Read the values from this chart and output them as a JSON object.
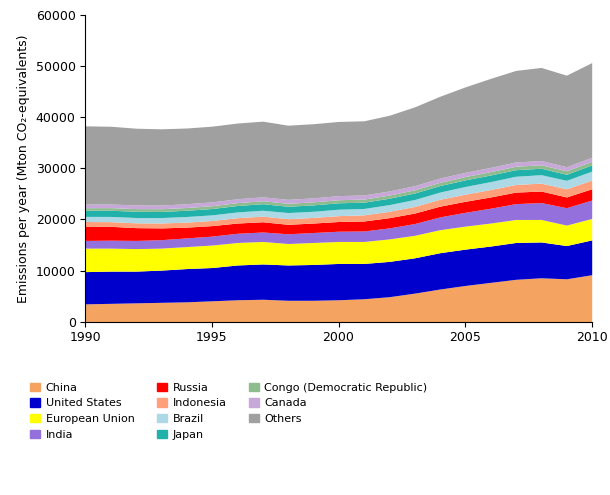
{
  "years": [
    1990,
    1991,
    1992,
    1993,
    1994,
    1995,
    1996,
    1997,
    1998,
    1999,
    2000,
    2001,
    2002,
    2003,
    2004,
    2005,
    2006,
    2007,
    2008,
    2009,
    2010
  ],
  "series": {
    "China": [
      3500,
      3600,
      3700,
      3800,
      3900,
      4100,
      4300,
      4400,
      4200,
      4200,
      4300,
      4500,
      4900,
      5600,
      6400,
      7100,
      7700,
      8300,
      8600,
      8400,
      9200
    ],
    "United States": [
      6300,
      6300,
      6200,
      6300,
      6500,
      6500,
      6800,
      6900,
      6900,
      7000,
      7100,
      6900,
      6900,
      6900,
      7100,
      7100,
      7100,
      7200,
      7000,
      6500,
      6800
    ],
    "European Union": [
      4600,
      4500,
      4400,
      4300,
      4300,
      4400,
      4400,
      4400,
      4200,
      4300,
      4300,
      4300,
      4400,
      4400,
      4500,
      4500,
      4500,
      4500,
      4400,
      4000,
      4200
    ],
    "India": [
      1500,
      1550,
      1600,
      1650,
      1700,
      1750,
      1800,
      1850,
      1900,
      1950,
      2000,
      2050,
      2150,
      2300,
      2500,
      2700,
      2900,
      3100,
      3300,
      3400,
      3600
    ],
    "Russia": [
      2800,
      2700,
      2500,
      2300,
      2100,
      2050,
      2000,
      2000,
      1850,
      1850,
      1900,
      1950,
      2000,
      2050,
      2100,
      2150,
      2200,
      2250,
      2250,
      2100,
      2200
    ],
    "Indonesia": [
      900,
      920,
      940,
      960,
      980,
      1000,
      1050,
      1100,
      1100,
      1100,
      1150,
      1200,
      1250,
      1300,
      1350,
      1400,
      1450,
      1500,
      1550,
      1600,
      1700
    ],
    "Brazil": [
      1000,
      1020,
      1040,
      1060,
      1100,
      1100,
      1120,
      1150,
      1200,
      1200,
      1250,
      1250,
      1300,
      1350,
      1400,
      1500,
      1550,
      1600,
      1650,
      1650,
      1750
    ],
    "Japan": [
      1200,
      1210,
      1220,
      1200,
      1220,
      1240,
      1260,
      1280,
      1230,
      1250,
      1260,
      1230,
      1250,
      1270,
      1280,
      1290,
      1290,
      1280,
      1260,
      1180,
      1220
    ],
    "Congo (Democratic Republic)": [
      500,
      510,
      520,
      530,
      540,
      550,
      560,
      570,
      580,
      590,
      600,
      610,
      620,
      630,
      640,
      650,
      660,
      670,
      680,
      690,
      700
    ],
    "Canada": [
      700,
      710,
      720,
      720,
      740,
      750,
      760,
      770,
      770,
      780,
      800,
      800,
      800,
      810,
      820,
      830,
      830,
      840,
      830,
      790,
      800
    ],
    "Others": [
      15300,
      15200,
      15000,
      14900,
      14800,
      14800,
      14800,
      14800,
      14500,
      14500,
      14500,
      14500,
      14800,
      15400,
      16000,
      16700,
      17400,
      17900,
      18200,
      17900,
      18500
    ]
  },
  "colors": {
    "China": "#F4A460",
    "United States": "#0000CD",
    "European Union": "#FFFF00",
    "India": "#9370DB",
    "Russia": "#FF0000",
    "Indonesia": "#FFA07A",
    "Brazil": "#ADD8E6",
    "Japan": "#20B2AA",
    "Congo (Democratic Republic)": "#8FBC8F",
    "Canada": "#C8A8D8",
    "Others": "#A0A0A0"
  },
  "ylabel": "Emissions per year (Mton CO₂-equivalents)",
  "ylim": [
    0,
    60000
  ],
  "yticks": [
    0,
    10000,
    20000,
    30000,
    40000,
    50000,
    60000
  ],
  "xlim": [
    1990,
    2010
  ],
  "xticks": [
    1990,
    1995,
    2000,
    2005,
    2010
  ],
  "legend_order": [
    "China",
    "United States",
    "European Union",
    "India",
    "Russia",
    "Indonesia",
    "Brazil",
    "Japan",
    "Congo (Democratic Republic)",
    "Canada",
    "Others"
  ],
  "figsize": [
    6.1,
    4.95
  ],
  "dpi": 100
}
